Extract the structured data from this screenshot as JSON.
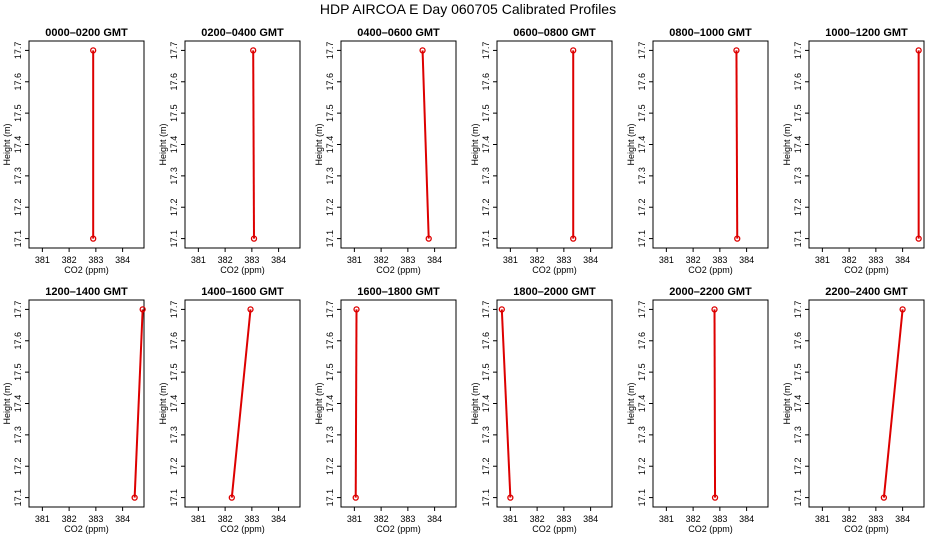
{
  "title": "HDP  AIRCOA E  Day 060705  Calibrated Profiles",
  "colors": {
    "series": "#dd0000",
    "axis": "#000000"
  },
  "chart_data": [
    {
      "type": "line",
      "title": "0000–0200 GMT",
      "xlabel": "CO2 (ppm)",
      "ylabel": "Height (m)",
      "xlim": [
        380.5,
        384.8
      ],
      "xticks": [
        381,
        382,
        383,
        384
      ],
      "ylim": [
        17.07,
        17.73
      ],
      "yticks": [
        17.1,
        17.2,
        17.3,
        17.4,
        17.5,
        17.6,
        17.7
      ],
      "x": [
        382.9,
        382.9
      ],
      "y": [
        17.1,
        17.7
      ]
    },
    {
      "type": "line",
      "title": "0200–0400 GMT",
      "xlabel": "CO2 (ppm)",
      "ylabel": "Height (m)",
      "xlim": [
        380.5,
        384.8
      ],
      "xticks": [
        381,
        382,
        383,
        384
      ],
      "ylim": [
        17.07,
        17.73
      ],
      "yticks": [
        17.1,
        17.2,
        17.3,
        17.4,
        17.5,
        17.6,
        17.7
      ],
      "x": [
        383.08,
        383.05
      ],
      "y": [
        17.1,
        17.7
      ]
    },
    {
      "type": "line",
      "title": "0400–0600 GMT",
      "xlabel": "CO2 (ppm)",
      "ylabel": "Height (m)",
      "xlim": [
        380.5,
        384.8
      ],
      "xticks": [
        381,
        382,
        383,
        384
      ],
      "ylim": [
        17.07,
        17.73
      ],
      "yticks": [
        17.1,
        17.2,
        17.3,
        17.4,
        17.5,
        17.6,
        17.7
      ],
      "x": [
        383.78,
        383.55
      ],
      "y": [
        17.1,
        17.7
      ]
    },
    {
      "type": "line",
      "title": "0600–0800 GMT",
      "xlabel": "CO2 (ppm)",
      "ylabel": "Height (m)",
      "xlim": [
        380.5,
        384.8
      ],
      "xticks": [
        381,
        382,
        383,
        384
      ],
      "ylim": [
        17.07,
        17.73
      ],
      "yticks": [
        17.1,
        17.2,
        17.3,
        17.4,
        17.5,
        17.6,
        17.7
      ],
      "x": [
        383.35,
        383.35
      ],
      "y": [
        17.1,
        17.7
      ]
    },
    {
      "type": "line",
      "title": "0800–1000 GMT",
      "xlabel": "CO2 (ppm)",
      "ylabel": "Height (m)",
      "xlim": [
        380.5,
        384.8
      ],
      "xticks": [
        381,
        382,
        383,
        384
      ],
      "ylim": [
        17.07,
        17.73
      ],
      "yticks": [
        17.1,
        17.2,
        17.3,
        17.4,
        17.5,
        17.6,
        17.7
      ],
      "x": [
        383.65,
        383.62
      ],
      "y": [
        17.1,
        17.7
      ]
    },
    {
      "type": "line",
      "title": "1000–1200 GMT",
      "xlabel": "CO2 (ppm)",
      "ylabel": "Height (m)",
      "xlim": [
        380.5,
        384.8
      ],
      "xticks": [
        381,
        382,
        383,
        384
      ],
      "ylim": [
        17.07,
        17.73
      ],
      "yticks": [
        17.1,
        17.2,
        17.3,
        17.4,
        17.5,
        17.6,
        17.7
      ],
      "x": [
        384.6,
        384.6
      ],
      "y": [
        17.1,
        17.7
      ]
    },
    {
      "type": "line",
      "title": "1200–1400 GMT",
      "xlabel": "CO2 (ppm)",
      "ylabel": "Height (m)",
      "xlim": [
        380.5,
        384.8
      ],
      "xticks": [
        381,
        382,
        383,
        384
      ],
      "ylim": [
        17.07,
        17.73
      ],
      "yticks": [
        17.1,
        17.2,
        17.3,
        17.4,
        17.5,
        17.6,
        17.7
      ],
      "x": [
        384.45,
        384.75
      ],
      "y": [
        17.1,
        17.7
      ]
    },
    {
      "type": "line",
      "title": "1400–1600 GMT",
      "xlabel": "CO2 (ppm)",
      "ylabel": "Height (m)",
      "xlim": [
        380.5,
        384.8
      ],
      "xticks": [
        381,
        382,
        383,
        384
      ],
      "ylim": [
        17.07,
        17.73
      ],
      "yticks": [
        17.1,
        17.2,
        17.3,
        17.4,
        17.5,
        17.6,
        17.7
      ],
      "x": [
        382.25,
        382.95
      ],
      "y": [
        17.1,
        17.7
      ]
    },
    {
      "type": "line",
      "title": "1600–1800 GMT",
      "xlabel": "CO2 (ppm)",
      "ylabel": "Height (m)",
      "xlim": [
        380.5,
        384.8
      ],
      "xticks": [
        381,
        382,
        383,
        384
      ],
      "ylim": [
        17.07,
        17.73
      ],
      "yticks": [
        17.1,
        17.2,
        17.3,
        17.4,
        17.5,
        17.6,
        17.7
      ],
      "x": [
        381.05,
        381.08
      ],
      "y": [
        17.1,
        17.7
      ]
    },
    {
      "type": "line",
      "title": "1800–2000 GMT",
      "xlabel": "CO2 (ppm)",
      "ylabel": "Height (m)",
      "xlim": [
        380.5,
        384.8
      ],
      "xticks": [
        381,
        382,
        383,
        384
      ],
      "ylim": [
        17.07,
        17.73
      ],
      "yticks": [
        17.1,
        17.2,
        17.3,
        17.4,
        17.5,
        17.6,
        17.7
      ],
      "x": [
        381.0,
        380.68
      ],
      "y": [
        17.1,
        17.7
      ]
    },
    {
      "type": "line",
      "title": "2000–2200 GMT",
      "xlabel": "CO2 (ppm)",
      "ylabel": "Height (m)",
      "xlim": [
        380.5,
        384.8
      ],
      "xticks": [
        381,
        382,
        383,
        384
      ],
      "ylim": [
        17.07,
        17.73
      ],
      "yticks": [
        17.1,
        17.2,
        17.3,
        17.4,
        17.5,
        17.6,
        17.7
      ],
      "x": [
        382.82,
        382.8
      ],
      "y": [
        17.1,
        17.7
      ]
    },
    {
      "type": "line",
      "title": "2200–2400 GMT",
      "xlabel": "CO2 (ppm)",
      "ylabel": "Height (m)",
      "xlim": [
        380.5,
        384.8
      ],
      "xticks": [
        381,
        382,
        383,
        384
      ],
      "ylim": [
        17.07,
        17.73
      ],
      "yticks": [
        17.1,
        17.2,
        17.3,
        17.4,
        17.5,
        17.6,
        17.7
      ],
      "x": [
        383.3,
        384.0
      ],
      "y": [
        17.1,
        17.7
      ]
    }
  ]
}
